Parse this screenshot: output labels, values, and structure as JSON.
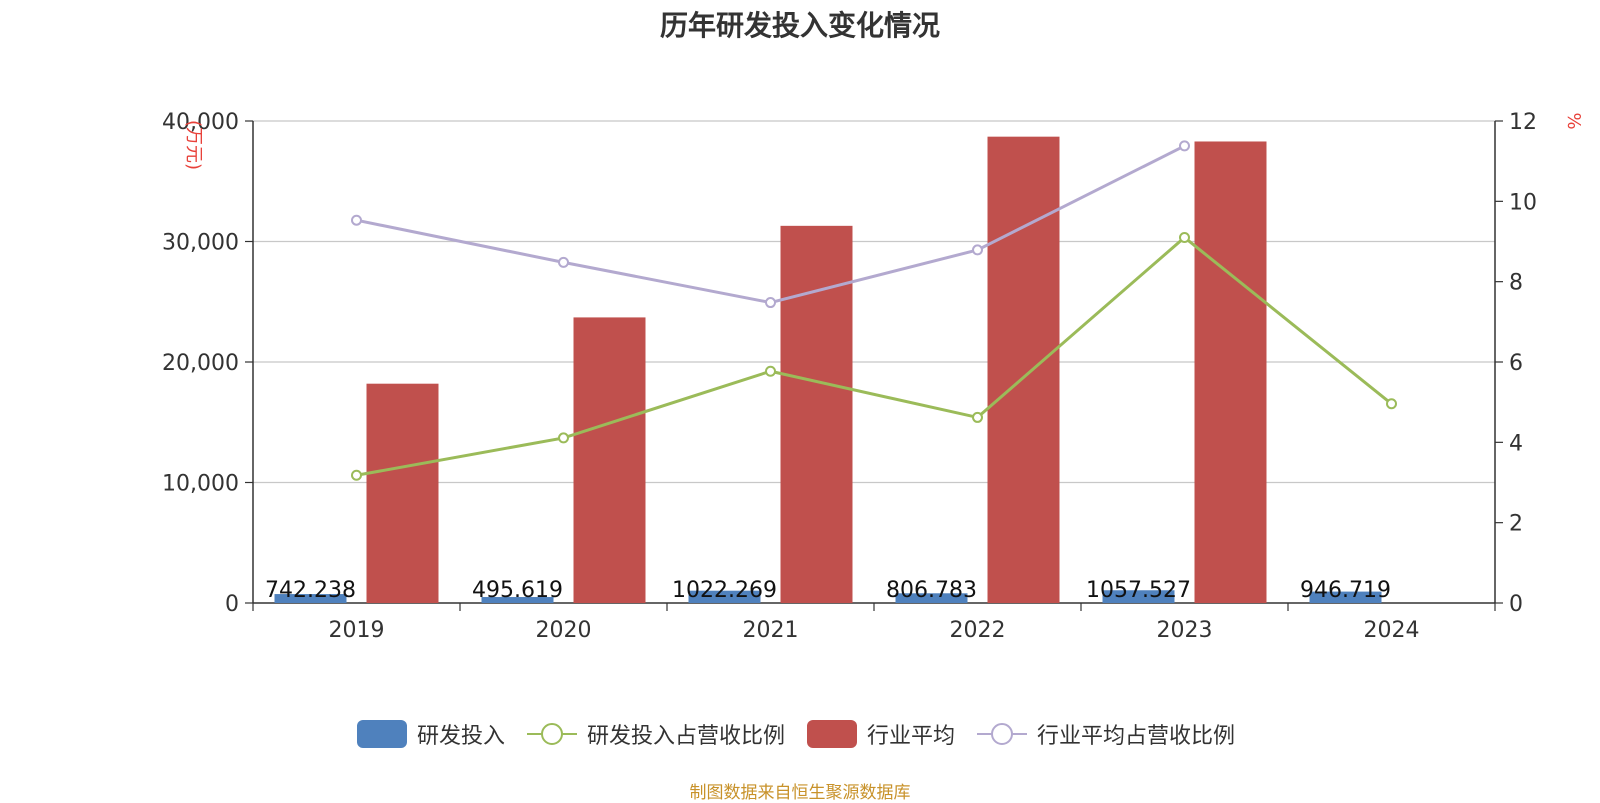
{
  "chart_data": {
    "type": "bar+line",
    "title": "历年研发投入变化情况",
    "categories": [
      "2019",
      "2020",
      "2021",
      "2022",
      "2023",
      "2024"
    ],
    "y_left": {
      "unit": "万元",
      "ylim": [
        0,
        40000
      ],
      "ticks": [
        "0",
        "10,000",
        "20,000",
        "30,000",
        "40,000"
      ],
      "tick_values": [
        0,
        10000,
        20000,
        30000,
        40000
      ]
    },
    "y_right": {
      "unit": "%",
      "ylim": [
        0,
        12
      ],
      "ticks": [
        "0",
        "2",
        "4",
        "6",
        "8",
        "10",
        "12"
      ],
      "tick_values": [
        0,
        2,
        4,
        6,
        8,
        10,
        12
      ]
    },
    "grid": true,
    "legend_position": "bottom",
    "series": [
      {
        "name": "研发投入",
        "type": "bar",
        "axis": "left",
        "color": "#4f81bd",
        "values": [
          742.238,
          495.619,
          1022.269,
          806.783,
          1057.527,
          946.719
        ],
        "labels": [
          "742.238",
          "495.619",
          "1022.269",
          "806.783",
          "1057.527",
          "946.719"
        ]
      },
      {
        "name": "研发投入占营收比例",
        "type": "line",
        "axis": "right",
        "color": "#9bbb59",
        "values": [
          3.18,
          4.11,
          5.77,
          4.62,
          9.1,
          4.96
        ]
      },
      {
        "name": "行业平均",
        "type": "bar",
        "axis": "left",
        "color": "#c0504d",
        "values": [
          18200,
          23700,
          31300,
          38700,
          38300,
          null
        ]
      },
      {
        "name": "行业平均占营收比例",
        "type": "line",
        "axis": "right",
        "color": "#b3a9cf",
        "values": [
          9.53,
          8.48,
          7.48,
          8.79,
          11.38,
          null
        ]
      }
    ],
    "source": "制图数据来自恒生聚源数据库"
  }
}
